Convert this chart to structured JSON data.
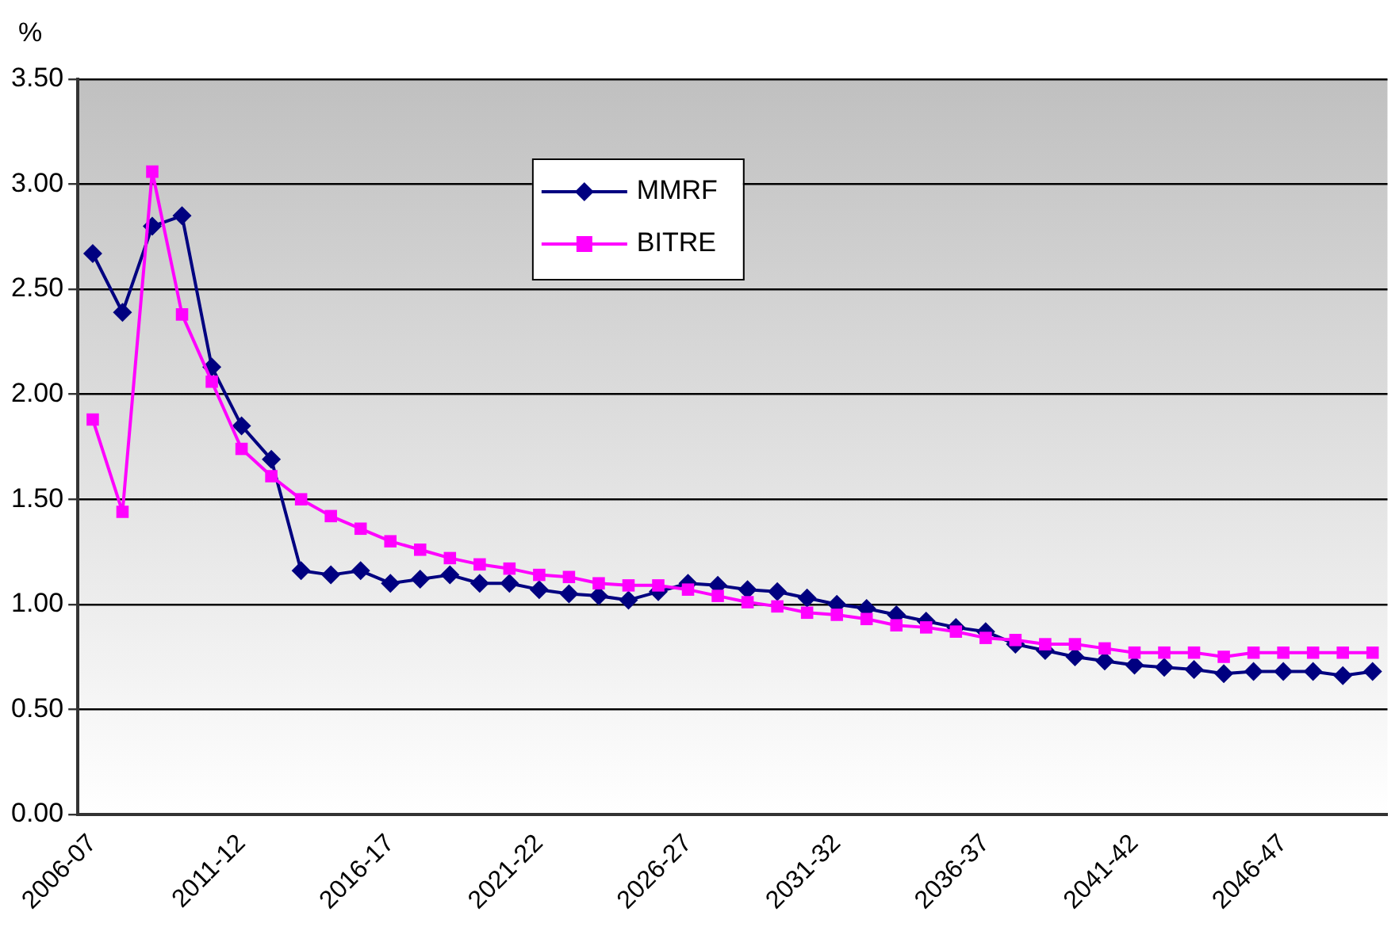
{
  "chart_data": {
    "type": "line",
    "ylabel": "%",
    "categories": [
      "2006-07",
      null,
      null,
      null,
      null,
      "2011-12",
      null,
      null,
      null,
      null,
      "2016-17",
      null,
      null,
      null,
      null,
      "2021-22",
      null,
      null,
      null,
      null,
      "2026-27",
      null,
      null,
      null,
      null,
      "2031-32",
      null,
      null,
      null,
      null,
      "2036-37",
      null,
      null,
      null,
      null,
      "2041-42",
      null,
      null,
      null,
      null,
      "2046-47",
      null,
      null,
      null
    ],
    "series": [
      {
        "name": "MMRF",
        "color": "#000080",
        "marker": "diamond",
        "values": [
          2.67,
          2.39,
          2.8,
          2.85,
          2.13,
          1.85,
          1.69,
          1.16,
          1.14,
          1.16,
          1.1,
          1.12,
          1.14,
          1.1,
          1.1,
          1.07,
          1.05,
          1.04,
          1.02,
          1.06,
          1.1,
          1.09,
          1.07,
          1.06,
          1.03,
          1.0,
          0.98,
          0.95,
          0.92,
          0.89,
          0.87,
          0.81,
          0.78,
          0.75,
          0.73,
          0.71,
          0.7,
          0.69,
          0.67,
          0.68,
          0.68,
          0.68,
          0.66,
          0.68
        ]
      },
      {
        "name": "BITRE",
        "color": "#ff00ff",
        "marker": "square",
        "values": [
          1.88,
          1.44,
          3.06,
          2.38,
          2.06,
          1.74,
          1.61,
          1.5,
          1.42,
          1.36,
          1.3,
          1.26,
          1.22,
          1.19,
          1.17,
          1.14,
          1.13,
          1.1,
          1.09,
          1.09,
          1.07,
          1.04,
          1.01,
          0.99,
          0.96,
          0.95,
          0.93,
          0.9,
          0.89,
          0.87,
          0.84,
          0.83,
          0.81,
          0.81,
          0.79,
          0.77,
          0.77,
          0.77,
          0.75,
          0.77,
          0.77,
          0.77,
          0.77,
          0.77
        ]
      }
    ],
    "ylim": [
      0,
      3.5
    ],
    "yticks": [
      {
        "value": 0,
        "label": "0.00"
      },
      {
        "value": 0.5,
        "label": "0.50"
      },
      {
        "value": 1,
        "label": "1.00"
      },
      {
        "value": 1.5,
        "label": "1.50"
      },
      {
        "value": 2,
        "label": "2.00"
      },
      {
        "value": 2.5,
        "label": "2.50"
      },
      {
        "value": 3,
        "label": "3.00"
      },
      {
        "value": 3.5,
        "label": "3.50"
      }
    ],
    "grid": "y",
    "legend": "top",
    "line_style": "solid"
  }
}
